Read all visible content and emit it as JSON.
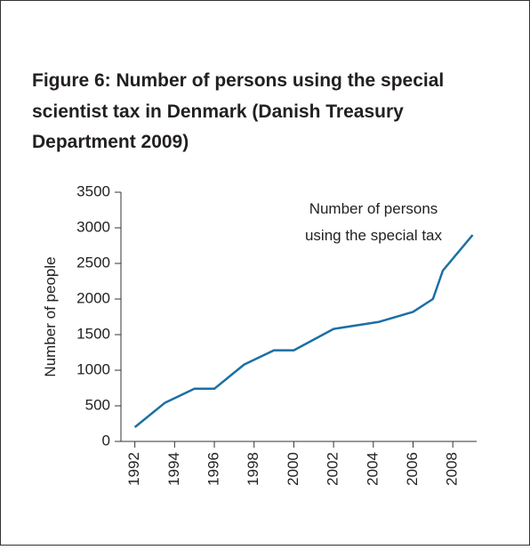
{
  "chart_data": {
    "type": "line",
    "title": [
      "Figure 6: Number of persons using the special",
      "scientist tax in Denmark (Danish Treasury",
      "Department 2009)"
    ],
    "ylabel": "Number of people",
    "annotation": [
      "Number of persons",
      "using the special tax"
    ],
    "x": [
      1992,
      1993.5,
      1995,
      1996,
      1997.5,
      1999,
      2000,
      2002,
      2004.3,
      2006,
      2007,
      2007.5,
      2009
    ],
    "series": [
      {
        "name": "Number of persons using the special tax",
        "color": "#1b6fa5",
        "values": [
          200,
          540,
          740,
          740,
          1080,
          1280,
          1280,
          1580,
          1680,
          1820,
          2000,
          2400,
          2900
        ]
      }
    ],
    "xlim": [
      1991.3,
      2009.2
    ],
    "xticks": [
      1992,
      1994,
      1996,
      1998,
      2000,
      2002,
      2004,
      2006,
      2008
    ],
    "ylim": [
      0,
      3500
    ],
    "yticks": [
      0,
      500,
      1000,
      1500,
      2000,
      2500,
      3000,
      3500
    ]
  }
}
